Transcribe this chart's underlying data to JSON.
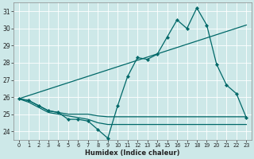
{
  "xlabel": "Humidex (Indice chaleur)",
  "bg_color": "#cde8e8",
  "grid_color": "#ffffff",
  "line_color": "#006868",
  "xlim": [
    -0.5,
    23.5
  ],
  "ylim": [
    23.5,
    31.5
  ],
  "yticks": [
    24,
    25,
    26,
    27,
    28,
    29,
    30,
    31
  ],
  "xticks": [
    0,
    1,
    2,
    3,
    4,
    5,
    6,
    7,
    8,
    9,
    10,
    11,
    12,
    13,
    14,
    15,
    16,
    17,
    18,
    19,
    20,
    21,
    22,
    23
  ],
  "series_markers": {
    "x": [
      0,
      1,
      2,
      3,
      4,
      5,
      6,
      7,
      8,
      9,
      10,
      11,
      12,
      13,
      14,
      15,
      16,
      17,
      18,
      19,
      20,
      21,
      22,
      23
    ],
    "y": [
      25.9,
      25.8,
      25.5,
      25.2,
      25.1,
      24.7,
      24.7,
      24.6,
      24.1,
      23.6,
      25.5,
      27.2,
      28.3,
      28.2,
      28.5,
      29.5,
      30.5,
      30.0,
      31.2,
      30.2,
      27.9,
      26.7,
      26.2,
      24.8
    ]
  },
  "series_linear": {
    "x": [
      0,
      23
    ],
    "y": [
      25.9,
      30.2
    ]
  },
  "series_flat": {
    "x": [
      0,
      1,
      2,
      3,
      4,
      5,
      6,
      7,
      8,
      9,
      10,
      11,
      12,
      13,
      14,
      15,
      16,
      17,
      18,
      19,
      20,
      21,
      22,
      23
    ],
    "y": [
      25.9,
      25.8,
      25.5,
      25.2,
      25.1,
      25.0,
      25.0,
      25.0,
      24.9,
      24.85,
      24.85,
      24.85,
      24.85,
      24.85,
      24.85,
      24.85,
      24.85,
      24.85,
      24.85,
      24.85,
      24.85,
      24.85,
      24.85,
      24.85
    ]
  },
  "series_low": {
    "x": [
      0,
      1,
      2,
      3,
      4,
      5,
      6,
      7,
      8,
      9,
      10,
      11,
      12,
      13,
      14,
      15,
      16,
      17,
      18,
      19,
      20,
      21,
      22,
      23
    ],
    "y": [
      25.9,
      25.7,
      25.4,
      25.1,
      25.0,
      24.9,
      24.8,
      24.7,
      24.5,
      24.4,
      24.4,
      24.4,
      24.4,
      24.4,
      24.4,
      24.4,
      24.4,
      24.4,
      24.4,
      24.4,
      24.4,
      24.4,
      24.4,
      24.4
    ]
  }
}
